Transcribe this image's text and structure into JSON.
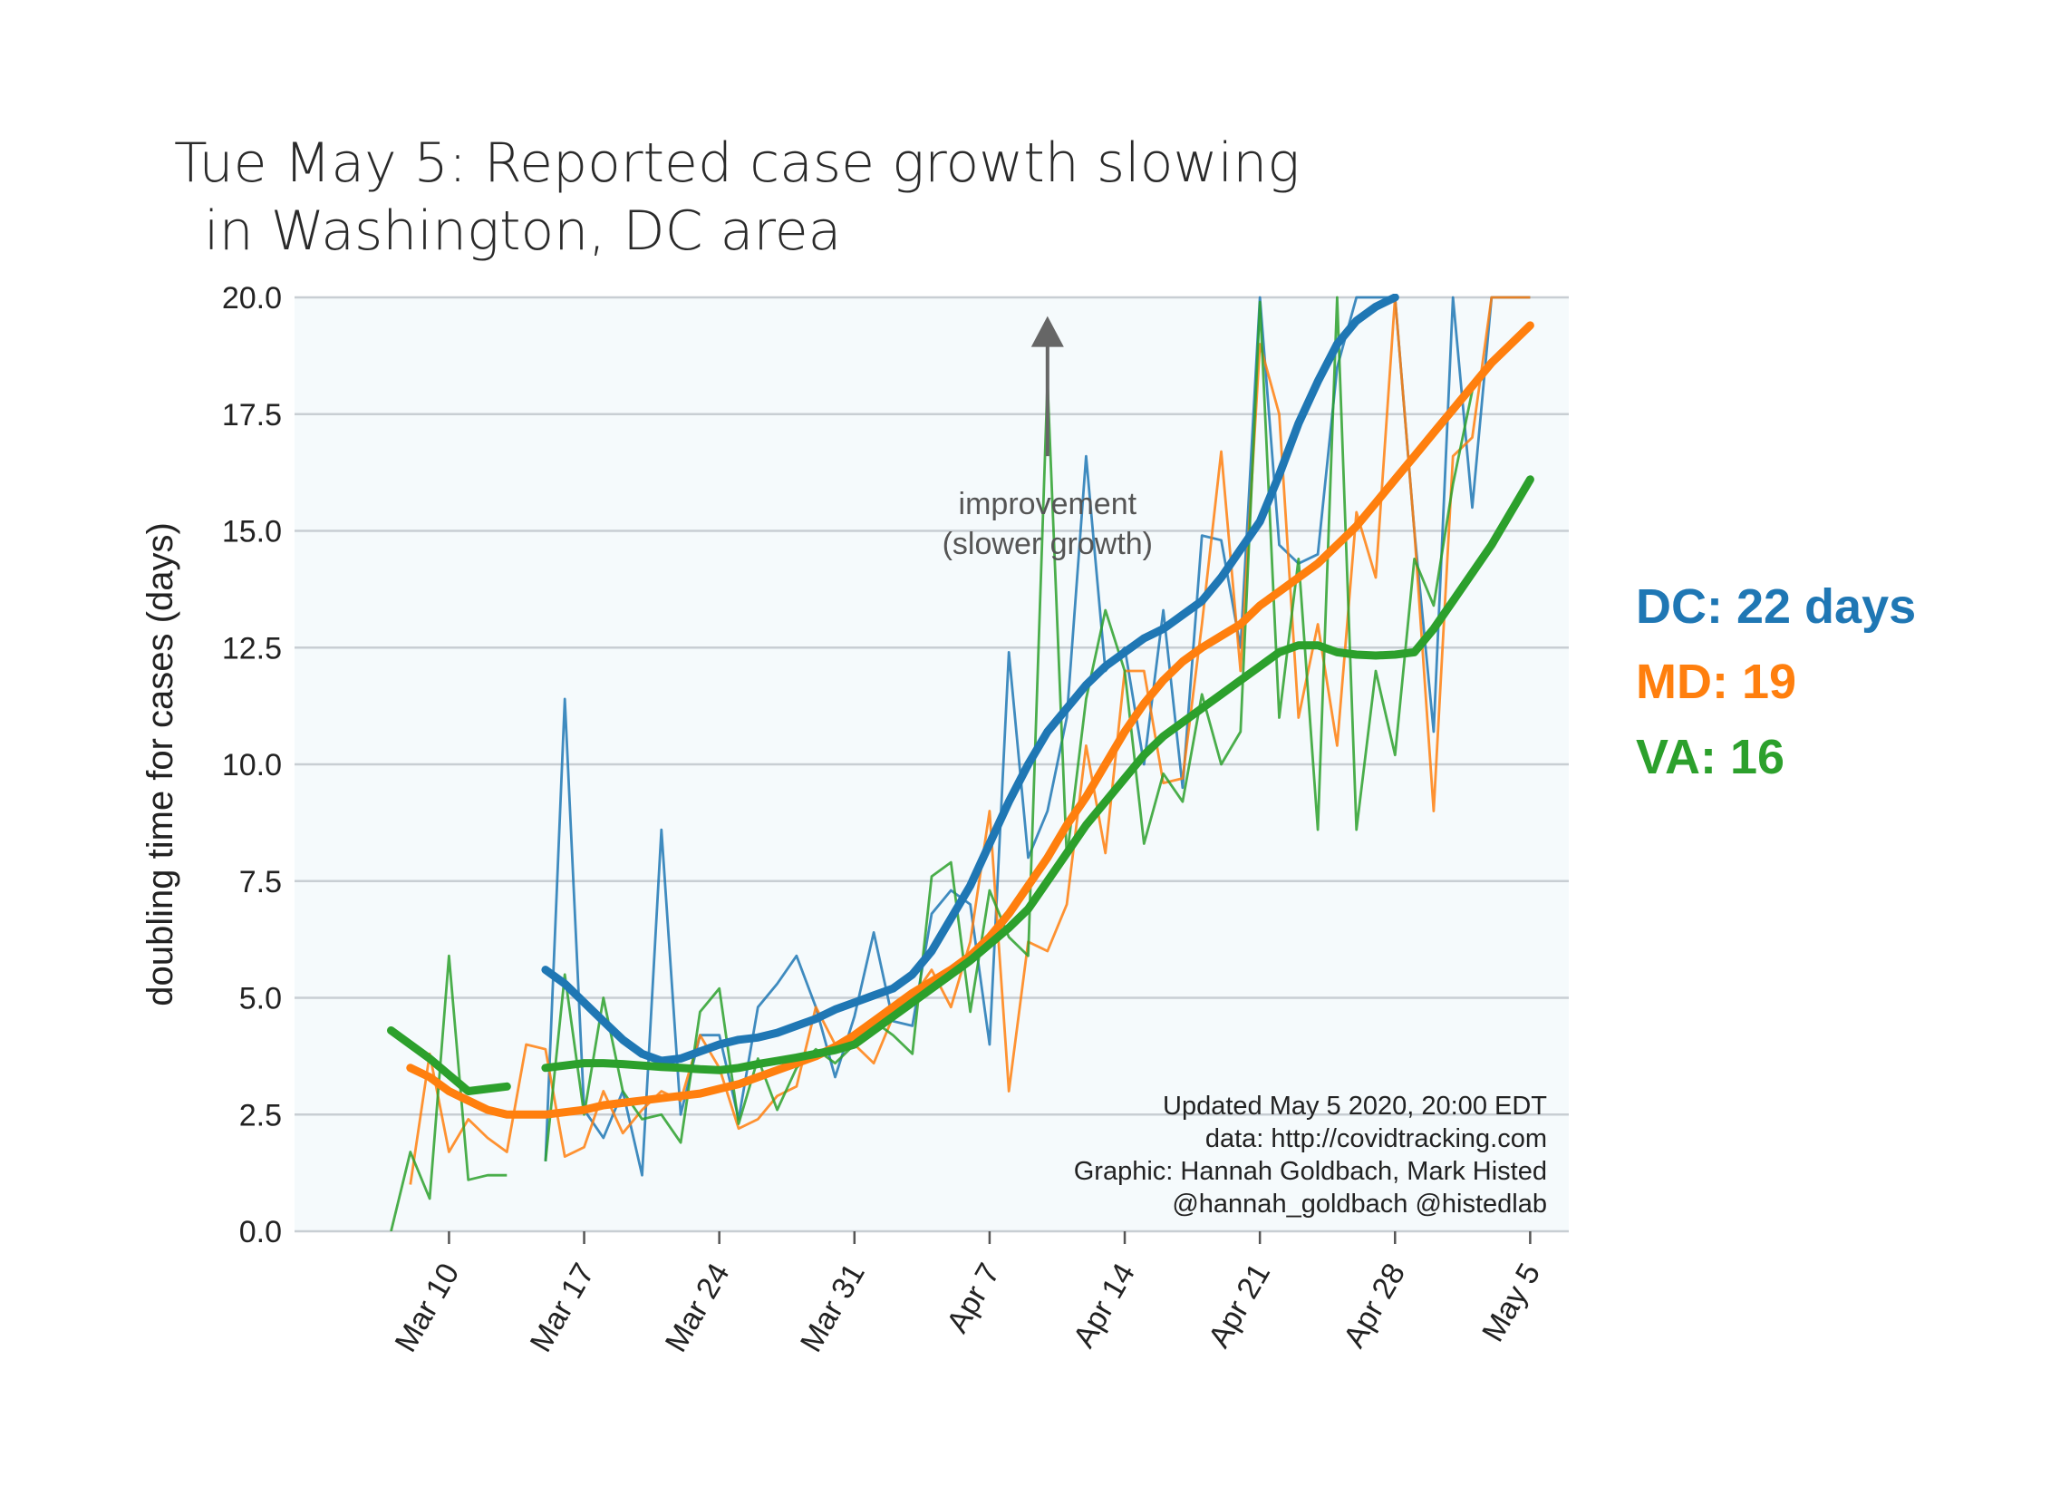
{
  "chart_data": {
    "type": "line",
    "title": [
      "Tue May 5: Reported case growth slowing",
      "in Washington, DC area"
    ],
    "ylabel": "doubling time for cases (days)",
    "ylim": [
      0,
      20
    ],
    "yticks": [
      0.0,
      2.5,
      5.0,
      7.5,
      10.0,
      12.5,
      15.0,
      17.5,
      20.0
    ],
    "ytick_labels": [
      "0.0",
      "2.5",
      "5.0",
      "7.5",
      "10.0",
      "12.5",
      "15.0",
      "17.5",
      "20.0"
    ],
    "xlim": [
      "2020-03-02",
      "2020-05-07"
    ],
    "xticks": [
      "2020-03-10",
      "2020-03-17",
      "2020-03-24",
      "2020-03-31",
      "2020-04-07",
      "2020-04-14",
      "2020-04-21",
      "2020-04-28",
      "2020-05-05"
    ],
    "xtick_labels": [
      "Mar 10",
      "Mar 17",
      "Mar 24",
      "Mar 31",
      "Apr 7",
      "Apr 14",
      "Apr 21",
      "Apr 28",
      "May 5"
    ],
    "grid": "horizontal",
    "colors": {
      "DC": "#1f77b4",
      "MD": "#ff7f0e",
      "VA": "#2ca02c",
      "background": "#f5fafc",
      "grid": "#c8ced3"
    },
    "annotation": {
      "lines": [
        "improvement",
        "(slower growth)"
      ],
      "arrow_from": [
        "2020-04-10",
        16.6
      ],
      "arrow_to": [
        "2020-04-10",
        19.6
      ],
      "text_at": [
        "2020-04-10",
        15.2
      ]
    },
    "credits": [
      "Updated May 5 2020, 20:00 EDT",
      "data: http://covidtracking.com",
      "Graphic: Hannah Goldbach, Mark Histed",
      "@hannah_goldbach @histedlab"
    ],
    "legend": [
      {
        "label": "DC: 22 days",
        "series": "DC"
      },
      {
        "label": "MD: 19",
        "series": "MD"
      },
      {
        "label": "VA: 16",
        "series": "VA"
      }
    ],
    "series": [
      {
        "name": "DC",
        "style": "raw",
        "x": [
          "2020-03-15",
          "2020-03-16",
          "2020-03-17",
          "2020-03-18",
          "2020-03-19",
          "2020-03-20",
          "2020-03-21",
          "2020-03-22",
          "2020-03-23",
          "2020-03-24",
          "2020-03-25",
          "2020-03-26",
          "2020-03-27",
          "2020-03-28",
          "2020-03-29",
          "2020-03-30",
          "2020-03-31",
          "2020-04-01",
          "2020-04-02",
          "2020-04-03",
          "2020-04-04",
          "2020-04-05",
          "2020-04-06",
          "2020-04-07",
          "2020-04-08",
          "2020-04-09",
          "2020-04-10",
          "2020-04-11",
          "2020-04-12",
          "2020-04-13",
          "2020-04-14",
          "2020-04-15",
          "2020-04-16",
          "2020-04-17",
          "2020-04-18",
          "2020-04-19",
          "2020-04-20",
          "2020-04-21",
          "2020-04-22",
          "2020-04-23",
          "2020-04-24",
          "2020-04-25",
          "2020-04-26",
          "2020-04-27",
          "2020-04-28",
          "2020-04-29",
          "2020-04-30",
          "2020-05-01",
          "2020-05-02",
          "2020-05-03",
          "2020-05-04",
          "2020-05-05"
        ],
        "y": [
          1.5,
          11.4,
          2.6,
          2.0,
          3.0,
          1.2,
          8.6,
          2.5,
          4.2,
          4.2,
          2.4,
          4.8,
          5.3,
          5.9,
          4.8,
          3.3,
          4.6,
          6.4,
          4.5,
          4.4,
          6.8,
          7.3,
          7.0,
          4.0,
          12.4,
          8.0,
          9.0,
          11.0,
          16.6,
          12.0,
          12.5,
          10.0,
          13.3,
          9.5,
          14.9,
          14.8,
          12.5,
          20.0,
          14.7,
          14.3,
          14.5,
          18.5,
          20.0,
          20.0,
          20.0,
          15.0,
          10.7,
          20.0,
          15.5,
          20.0,
          20.0,
          20.0
        ]
      },
      {
        "name": "MD",
        "style": "raw",
        "x": [
          "2020-03-08",
          "2020-03-09",
          "2020-03-10",
          "2020-03-11",
          "2020-03-12",
          "2020-03-13",
          "2020-03-14",
          "2020-03-15",
          "2020-03-16",
          "2020-03-17",
          "2020-03-18",
          "2020-03-19",
          "2020-03-20",
          "2020-03-21",
          "2020-03-22",
          "2020-03-23",
          "2020-03-24",
          "2020-03-25",
          "2020-03-26",
          "2020-03-27",
          "2020-03-28",
          "2020-03-29",
          "2020-03-30",
          "2020-03-31",
          "2020-04-01",
          "2020-04-02",
          "2020-04-03",
          "2020-04-04",
          "2020-04-05",
          "2020-04-06",
          "2020-04-07",
          "2020-04-08",
          "2020-04-09",
          "2020-04-10",
          "2020-04-11",
          "2020-04-12",
          "2020-04-13",
          "2020-04-14",
          "2020-04-15",
          "2020-04-16",
          "2020-04-17",
          "2020-04-18",
          "2020-04-19",
          "2020-04-20",
          "2020-04-21",
          "2020-04-22",
          "2020-04-23",
          "2020-04-24",
          "2020-04-25",
          "2020-04-26",
          "2020-04-27",
          "2020-04-28",
          "2020-04-29",
          "2020-04-30",
          "2020-05-01",
          "2020-05-02",
          "2020-05-03",
          "2020-05-04",
          "2020-05-05"
        ],
        "y": [
          1.0,
          3.8,
          1.7,
          2.4,
          2.0,
          1.7,
          4.0,
          3.9,
          1.6,
          1.8,
          3.0,
          2.1,
          2.6,
          3.0,
          2.8,
          4.2,
          3.5,
          2.2,
          2.4,
          2.9,
          3.1,
          4.8,
          4.0,
          4.0,
          3.6,
          4.6,
          5.0,
          5.6,
          4.8,
          6.2,
          9.0,
          3.0,
          6.2,
          6.0,
          7.0,
          10.4,
          8.1,
          12.0,
          12.0,
          9.6,
          9.7,
          13.0,
          16.7,
          12.0,
          19.0,
          17.5,
          11.0,
          13.0,
          10.4,
          15.4,
          14.0,
          20.0,
          15.0,
          9.0,
          16.6,
          17.0,
          20.0,
          20.0,
          20.0
        ]
      },
      {
        "name": "VA",
        "style": "raw",
        "x": [
          "2020-03-07",
          "2020-03-08",
          "2020-03-09",
          "2020-03-10",
          "2020-03-11",
          "2020-03-12",
          "2020-03-13",
          "2020-03-14",
          "2020-03-15",
          "2020-03-16",
          "2020-03-17",
          "2020-03-18",
          "2020-03-19",
          "2020-03-20",
          "2020-03-21",
          "2020-03-22",
          "2020-03-23",
          "2020-03-24",
          "2020-03-25",
          "2020-03-26",
          "2020-03-27",
          "2020-03-28",
          "2020-03-29",
          "2020-03-30",
          "2020-03-31",
          "2020-04-01",
          "2020-04-02",
          "2020-04-03",
          "2020-04-04",
          "2020-04-05",
          "2020-04-06",
          "2020-04-07",
          "2020-04-08",
          "2020-04-09",
          "2020-04-10",
          "2020-04-11",
          "2020-04-12",
          "2020-04-13",
          "2020-04-14",
          "2020-04-15",
          "2020-04-16",
          "2020-04-17",
          "2020-04-18",
          "2020-04-19",
          "2020-04-20",
          "2020-04-21",
          "2020-04-22",
          "2020-04-23",
          "2020-04-24",
          "2020-04-25",
          "2020-04-26",
          "2020-04-27",
          "2020-04-28",
          "2020-04-29",
          "2020-04-30",
          "2020-05-01",
          "2020-05-02",
          "2020-05-03",
          "2020-05-04",
          "2020-05-05"
        ],
        "y": [
          0.0,
          1.7,
          0.7,
          5.9,
          1.1,
          1.2,
          1.2,
          null,
          1.5,
          5.5,
          2.5,
          5.0,
          3.0,
          2.4,
          2.5,
          1.9,
          4.7,
          5.2,
          2.3,
          3.7,
          2.6,
          3.5,
          3.9,
          3.6,
          4.0,
          4.5,
          4.2,
          3.8,
          7.6,
          7.9,
          4.7,
          7.3,
          6.3,
          5.9,
          18.2,
          8.0,
          11.4,
          13.3,
          12.0,
          8.3,
          9.8,
          9.2,
          11.5,
          10.0,
          10.7,
          19.9,
          11.0,
          14.4,
          8.6,
          20.0,
          8.6,
          12.0,
          10.2,
          14.4,
          13.4,
          16.0,
          18.0,
          null,
          null,
          null
        ]
      },
      {
        "name": "DC",
        "style": "smooth",
        "x": [
          "2020-03-15",
          "2020-03-16",
          "2020-03-17",
          "2020-03-18",
          "2020-03-19",
          "2020-03-20",
          "2020-03-21",
          "2020-03-22",
          "2020-03-23",
          "2020-03-24",
          "2020-03-25",
          "2020-03-26",
          "2020-03-27",
          "2020-03-28",
          "2020-03-29",
          "2020-03-30",
          "2020-03-31",
          "2020-04-01",
          "2020-04-02",
          "2020-04-03",
          "2020-04-04",
          "2020-04-05",
          "2020-04-06",
          "2020-04-07",
          "2020-04-08",
          "2020-04-09",
          "2020-04-10",
          "2020-04-11",
          "2020-04-12",
          "2020-04-13",
          "2020-04-14",
          "2020-04-15",
          "2020-04-16",
          "2020-04-17",
          "2020-04-18",
          "2020-04-19",
          "2020-04-20",
          "2020-04-21",
          "2020-04-22",
          "2020-04-23",
          "2020-04-24",
          "2020-04-25",
          "2020-04-26",
          "2020-04-27",
          "2020-04-28"
        ],
        "y": [
          5.6,
          5.3,
          4.9,
          4.5,
          4.1,
          3.8,
          3.65,
          3.7,
          3.85,
          4.0,
          4.1,
          4.15,
          4.25,
          4.4,
          4.55,
          4.75,
          4.9,
          5.05,
          5.2,
          5.5,
          6.0,
          6.7,
          7.4,
          8.3,
          9.2,
          10.0,
          10.7,
          11.2,
          11.7,
          12.1,
          12.4,
          12.7,
          12.9,
          13.2,
          13.5,
          14.0,
          14.6,
          15.2,
          16.2,
          17.3,
          18.2,
          19.0,
          19.5,
          19.8,
          20.0
        ]
      },
      {
        "name": "MD",
        "style": "smooth",
        "x": [
          "2020-03-08",
          "2020-03-09",
          "2020-03-10",
          "2020-03-11",
          "2020-03-12",
          "2020-03-13",
          "2020-03-14",
          "2020-03-15",
          "2020-03-16",
          "2020-03-17",
          "2020-03-18",
          "2020-03-19",
          "2020-03-20",
          "2020-03-21",
          "2020-03-22",
          "2020-03-23",
          "2020-03-24",
          "2020-03-25",
          "2020-03-26",
          "2020-03-27",
          "2020-03-28",
          "2020-03-29",
          "2020-03-30",
          "2020-03-31",
          "2020-04-01",
          "2020-04-02",
          "2020-04-03",
          "2020-04-04",
          "2020-04-05",
          "2020-04-06",
          "2020-04-07",
          "2020-04-08",
          "2020-04-09",
          "2020-04-10",
          "2020-04-11",
          "2020-04-12",
          "2020-04-13",
          "2020-04-14",
          "2020-04-15",
          "2020-04-16",
          "2020-04-17",
          "2020-04-18",
          "2020-04-19",
          "2020-04-20",
          "2020-04-21",
          "2020-04-22",
          "2020-04-23",
          "2020-04-24",
          "2020-04-25",
          "2020-04-26",
          "2020-04-27",
          "2020-04-28",
          "2020-04-29",
          "2020-04-30",
          "2020-05-01",
          "2020-05-02",
          "2020-05-03",
          "2020-05-04",
          "2020-05-05"
        ],
        "y": [
          3.5,
          3.3,
          3.0,
          2.8,
          2.6,
          2.5,
          2.5,
          2.5,
          2.55,
          2.6,
          2.7,
          2.75,
          2.8,
          2.85,
          2.9,
          2.95,
          3.05,
          3.15,
          3.3,
          3.45,
          3.6,
          3.75,
          3.95,
          4.2,
          4.5,
          4.8,
          5.1,
          5.35,
          5.6,
          5.9,
          6.3,
          6.8,
          7.4,
          8.0,
          8.7,
          9.3,
          10.0,
          10.7,
          11.3,
          11.8,
          12.2,
          12.5,
          12.75,
          13.0,
          13.4,
          13.7,
          14.0,
          14.3,
          14.7,
          15.1,
          15.6,
          16.1,
          16.6,
          17.1,
          17.6,
          18.1,
          18.6,
          19.0,
          19.4
        ]
      },
      {
        "name": "VA",
        "style": "smooth",
        "x": [
          "2020-03-07",
          "2020-03-08",
          "2020-03-09",
          "2020-03-10",
          "2020-03-11",
          "2020-03-12",
          "2020-03-13",
          "2020-03-14",
          "2020-03-15",
          "2020-03-16",
          "2020-03-17",
          "2020-03-18",
          "2020-03-19",
          "2020-03-20",
          "2020-03-21",
          "2020-03-22",
          "2020-03-23",
          "2020-03-24",
          "2020-03-25",
          "2020-03-26",
          "2020-03-27",
          "2020-03-28",
          "2020-03-29",
          "2020-03-30",
          "2020-03-31",
          "2020-04-01",
          "2020-04-02",
          "2020-04-03",
          "2020-04-04",
          "2020-04-05",
          "2020-04-06",
          "2020-04-07",
          "2020-04-08",
          "2020-04-09",
          "2020-04-10",
          "2020-04-11",
          "2020-04-12",
          "2020-04-13",
          "2020-04-14",
          "2020-04-15",
          "2020-04-16",
          "2020-04-17",
          "2020-04-18",
          "2020-04-19",
          "2020-04-20",
          "2020-04-21",
          "2020-04-22",
          "2020-04-23",
          "2020-04-24",
          "2020-04-25",
          "2020-04-26",
          "2020-04-27",
          "2020-04-28",
          "2020-04-29",
          "2020-04-30",
          "2020-05-01",
          "2020-05-02",
          "2020-05-03",
          "2020-05-04",
          "2020-05-05"
        ],
        "y": [
          4.3,
          4.0,
          3.7,
          3.35,
          3.0,
          3.05,
          3.1,
          null,
          3.5,
          3.55,
          3.6,
          3.6,
          3.58,
          3.55,
          3.52,
          3.5,
          3.47,
          3.45,
          3.5,
          3.58,
          3.65,
          3.72,
          3.8,
          3.88,
          4.0,
          4.3,
          4.6,
          4.9,
          5.2,
          5.5,
          5.8,
          6.15,
          6.5,
          6.9,
          7.5,
          8.1,
          8.7,
          9.2,
          9.7,
          10.2,
          10.6,
          10.9,
          11.2,
          11.5,
          11.8,
          12.1,
          12.4,
          12.55,
          12.55,
          12.4,
          12.35,
          12.33,
          12.35,
          12.4,
          12.9,
          13.5,
          14.1,
          14.7,
          15.4,
          16.1
        ]
      }
    ]
  }
}
